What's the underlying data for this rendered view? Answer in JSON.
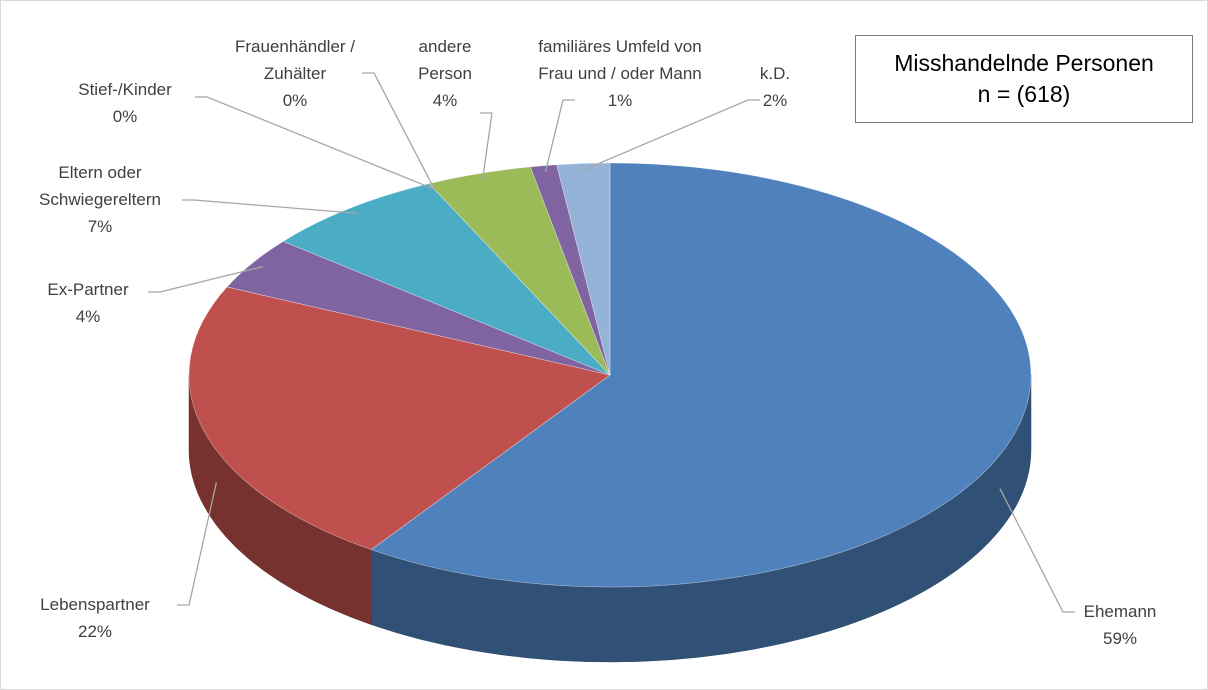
{
  "chart_data": {
    "type": "pie",
    "title": "Misshandelnde Personen",
    "subtitle": "n = (618)",
    "categories": [
      "Ehemann",
      "Lebenspartner",
      "Ex-Partner",
      "Eltern oder\nSchwiegereltern",
      "Stief-/Kinder",
      "Frauenhändler /\nZuhälter",
      "andere\nPerson",
      "familiäres Umfeld von\nFrau und / oder Mann",
      "k.D."
    ],
    "values": [
      59,
      22,
      4,
      7,
      0,
      0,
      4,
      1,
      2
    ],
    "value_labels": [
      "59%",
      "22%",
      "4%",
      "7%",
      "0%",
      "0%",
      "4%",
      "1%",
      "2%"
    ],
    "colors": [
      "#4f81bd",
      "#c0504d",
      "#8064a2",
      "#4bacc6",
      "#f79646",
      "#f79646",
      "#9bbb59",
      "#8064a2",
      "#95b3d7"
    ]
  }
}
